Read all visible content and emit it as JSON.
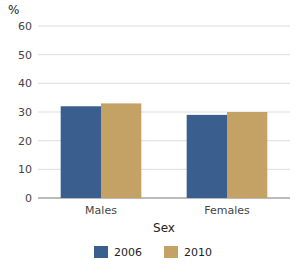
{
  "chart_data": {
    "type": "bar",
    "xlabel": "Sex",
    "ylabel": "%",
    "categories": [
      "Males",
      "Females"
    ],
    "series": [
      {
        "name": "2006",
        "color": "#3A5F8F",
        "values": [
          32,
          29
        ]
      },
      {
        "name": "2010",
        "color": "#C4A265",
        "values": [
          33,
          30
        ]
      }
    ],
    "ylim": [
      0,
      60
    ],
    "yticks": [
      0,
      10,
      20,
      30,
      40,
      50,
      60
    ],
    "grid": true,
    "legend": "bottom"
  }
}
